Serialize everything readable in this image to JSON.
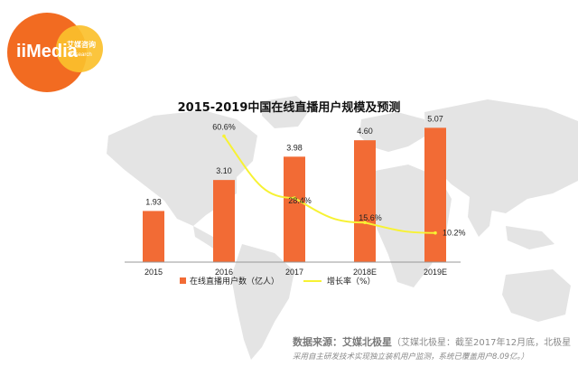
{
  "logo": {
    "brand_text": "iiMedia",
    "badge_text": "艾媒咨询",
    "sub_text": "Research"
  },
  "chart_data": {
    "type": "bar",
    "title": "2015-2019中国在线直播用户规模及预测",
    "categories": [
      "2015",
      "2016",
      "2017",
      "2018E",
      "2019E"
    ],
    "series": [
      {
        "name": "在线直播用户数（亿人）",
        "type": "bar",
        "values": [
          1.93,
          3.1,
          3.98,
          4.6,
          5.07
        ],
        "labels": [
          "1.93",
          "3.10",
          "3.98",
          "4.60",
          "5.07"
        ],
        "color": "#f26b35"
      },
      {
        "name": "增长率（%）",
        "type": "line",
        "values": [
          null,
          60.6,
          28.4,
          15.6,
          10.2
        ],
        "labels": [
          "",
          "60.6%",
          "28.4%",
          "15.6%",
          "10.2%"
        ],
        "color": "#f7f233"
      }
    ],
    "ylim": [
      0,
      5.8
    ],
    "y2lim": [
      -5,
      75
    ],
    "grid": false,
    "legend_position": "bottom"
  },
  "source": {
    "label": "数据来源：艾媒北极星",
    "note1": "（艾媒北极星：截至2017年12月底，北极星",
    "note2": "采用自主研发技术实现独立装机用户监测，系统已覆盖用户8.09亿。）"
  },
  "colors": {
    "bar": "#f26b35",
    "line": "#f7f233",
    "logo_orange": "#f26b21",
    "logo_yellow": "#fbc02d",
    "map": "#e3e3e3"
  }
}
